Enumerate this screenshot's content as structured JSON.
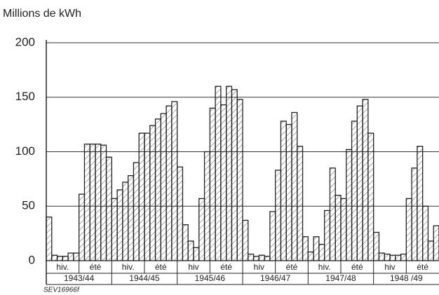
{
  "chart_data": {
    "type": "step-area",
    "ylabel": "Millions de kWh",
    "note": "SEV16966f",
    "categories": [
      null,
      null,
      null,
      null,
      null,
      null,
      null,
      null,
      null,
      null,
      null,
      null,
      null,
      null,
      null,
      null,
      null,
      null,
      null,
      null,
      null,
      null,
      null,
      null,
      null,
      null,
      null,
      null,
      null,
      null,
      null,
      null,
      null,
      null,
      null,
      null,
      null,
      null,
      null,
      null,
      null,
      null,
      null,
      null,
      null,
      null,
      null,
      null,
      null,
      null,
      null,
      null,
      null,
      null,
      null,
      null,
      null,
      null,
      null,
      null,
      null,
      null,
      null,
      null,
      null,
      null,
      null,
      null,
      null,
      null,
      null,
      null
    ],
    "seasons": [
      "hiv.",
      "été",
      "hiv.",
      "été",
      "hiv",
      "été",
      "hiv",
      "été",
      "hiv.",
      "été",
      "hiv",
      "été"
    ],
    "years": [
      "1943/44",
      "1944/45",
      "1945/46",
      "1946/47",
      "1947/48",
      "1948 /49"
    ],
    "values": [
      40,
      5,
      4,
      4,
      7,
      7,
      61,
      107,
      107,
      107,
      106,
      95,
      57,
      65,
      72,
      78,
      90,
      117,
      117,
      124,
      130,
      135,
      142,
      146,
      86,
      33,
      18,
      12,
      57,
      100,
      140,
      160,
      143,
      160,
      157,
      148,
      37,
      6,
      4,
      5,
      4,
      45,
      83,
      128,
      125,
      136,
      105,
      22,
      8,
      22,
      15,
      46,
      85,
      60,
      57,
      102,
      128,
      142,
      148,
      117,
      26,
      7,
      6,
      5,
      5,
      6,
      57,
      85,
      105,
      50,
      18,
      32
    ],
    "color": "#222222",
    "ylim": [
      0,
      200
    ],
    "yticks": [
      0,
      50,
      100,
      150,
      200
    ],
    "grid": true
  }
}
